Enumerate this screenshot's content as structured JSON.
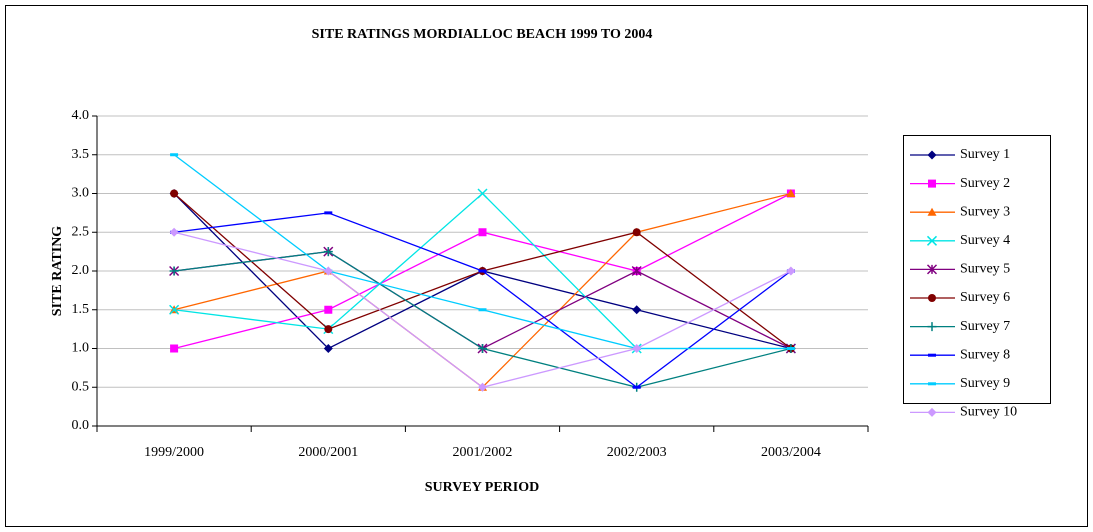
{
  "chart_data": {
    "type": "line",
    "title": "SITE RATINGS MORDIALLOC BEACH 1999 TO 2004",
    "x_label": "SURVEY PERIOD",
    "y_label": "SITE RATING",
    "categories": [
      "1999/2000",
      "2000/2001",
      "2001/2002",
      "2002/2003",
      "2003/2004"
    ],
    "ylim": [
      0,
      4
    ],
    "yticks": [
      {
        "value": 0,
        "label": "0.0"
      },
      0.5,
      {
        "value": 1,
        "label": "1.0"
      },
      1.5,
      {
        "value": 2,
        "label": "2.0"
      },
      2.5,
      {
        "value": 3,
        "label": "3.0"
      },
      3.5,
      {
        "value": 4,
        "label": "4.0"
      }
    ],
    "grid": true,
    "legend": "right",
    "series": [
      {
        "name": "Survey 1",
        "color": "#000080",
        "marker": "diamond",
        "values": [
          3.0,
          1.0,
          2.0,
          1.5,
          1.0
        ]
      },
      {
        "name": "Survey 2",
        "color": "#ff00ff",
        "marker": "square",
        "values": [
          1.0,
          1.5,
          2.5,
          2.0,
          3.0
        ]
      },
      {
        "name": "Survey 3",
        "color": "#ff6600",
        "marker": "triangle",
        "values": [
          1.5,
          2.0,
          0.5,
          2.5,
          3.0
        ]
      },
      {
        "name": "Survey 4",
        "color": "#00e5e5",
        "marker": "x",
        "values": [
          1.5,
          1.25,
          3.0,
          1.0,
          1.0
        ]
      },
      {
        "name": "Survey 5",
        "color": "#800080",
        "marker": "star",
        "values": [
          2.0,
          2.25,
          1.0,
          2.0,
          1.0
        ]
      },
      {
        "name": "Survey 6",
        "color": "#800000",
        "marker": "circle",
        "values": [
          3.0,
          1.25,
          2.0,
          2.5,
          1.0
        ]
      },
      {
        "name": "Survey 7",
        "color": "#008080",
        "marker": "plus",
        "values": [
          2.0,
          2.25,
          1.0,
          0.5,
          1.0
        ]
      },
      {
        "name": "Survey 8",
        "color": "#0000ff",
        "marker": "dash",
        "values": [
          2.5,
          2.75,
          2.0,
          0.5,
          2.0
        ]
      },
      {
        "name": "Survey 9",
        "color": "#00ccff",
        "marker": "dash",
        "values": [
          3.5,
          2.0,
          1.5,
          1.0,
          1.0
        ]
      },
      {
        "name": "Survey 10",
        "color": "#cc99ff",
        "marker": "diamond",
        "values": [
          2.5,
          2.0,
          0.5,
          1.0,
          2.0
        ]
      }
    ]
  }
}
